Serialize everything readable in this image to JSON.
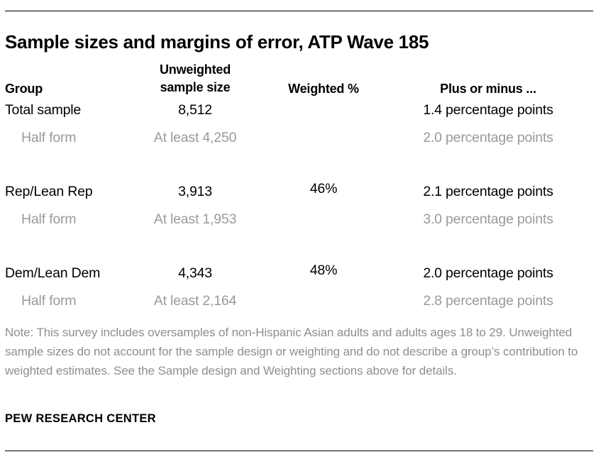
{
  "title": "Sample sizes and margins of error, ATP Wave 185",
  "table": {
    "headers": {
      "group": "Group",
      "sample_line1": "Unweighted",
      "sample_line2": "sample size",
      "weighted": "Weighted %",
      "plus_minus": "Plus or minus ..."
    },
    "rows": [
      {
        "group": "Total sample",
        "sample": "8,512",
        "weighted": "",
        "plus_minus": "1.4 percentage points"
      },
      {
        "group": "Half form",
        "sample": "At least 4,250",
        "weighted": "",
        "plus_minus": "2.0 percentage points"
      },
      {
        "group": "Rep/Lean Rep",
        "sample": "3,913",
        "weighted": "46%",
        "plus_minus": "2.1 percentage points"
      },
      {
        "group": "Half form",
        "sample": "At least 1,953",
        "weighted": "",
        "plus_minus": "3.0 percentage points"
      },
      {
        "group": "Dem/Lean Dem",
        "sample": "4,343",
        "weighted": "48%",
        "plus_minus": "2.0 percentage points"
      },
      {
        "group": "Half form",
        "sample": "At least 2,164",
        "weighted": "",
        "plus_minus": "2.8 percentage points"
      }
    ]
  },
  "note_lines": [
    "Note: This survey includes oversamples of non-Hispanic Asian adults and adults ages 18 to",
    "29. Unweighted sample sizes do not account for the sample design or weighting and do not",
    "describe a group’s contribution to weighted estimates. See the Sample design and Weighting",
    "sections above for details."
  ],
  "footer": "PEW RESEARCH CENTER",
  "colors": {
    "text": "#000000",
    "muted_text": "#9a9a9a",
    "note_text": "#8e8e90",
    "rule": "#000000",
    "background": "#ffffff"
  }
}
